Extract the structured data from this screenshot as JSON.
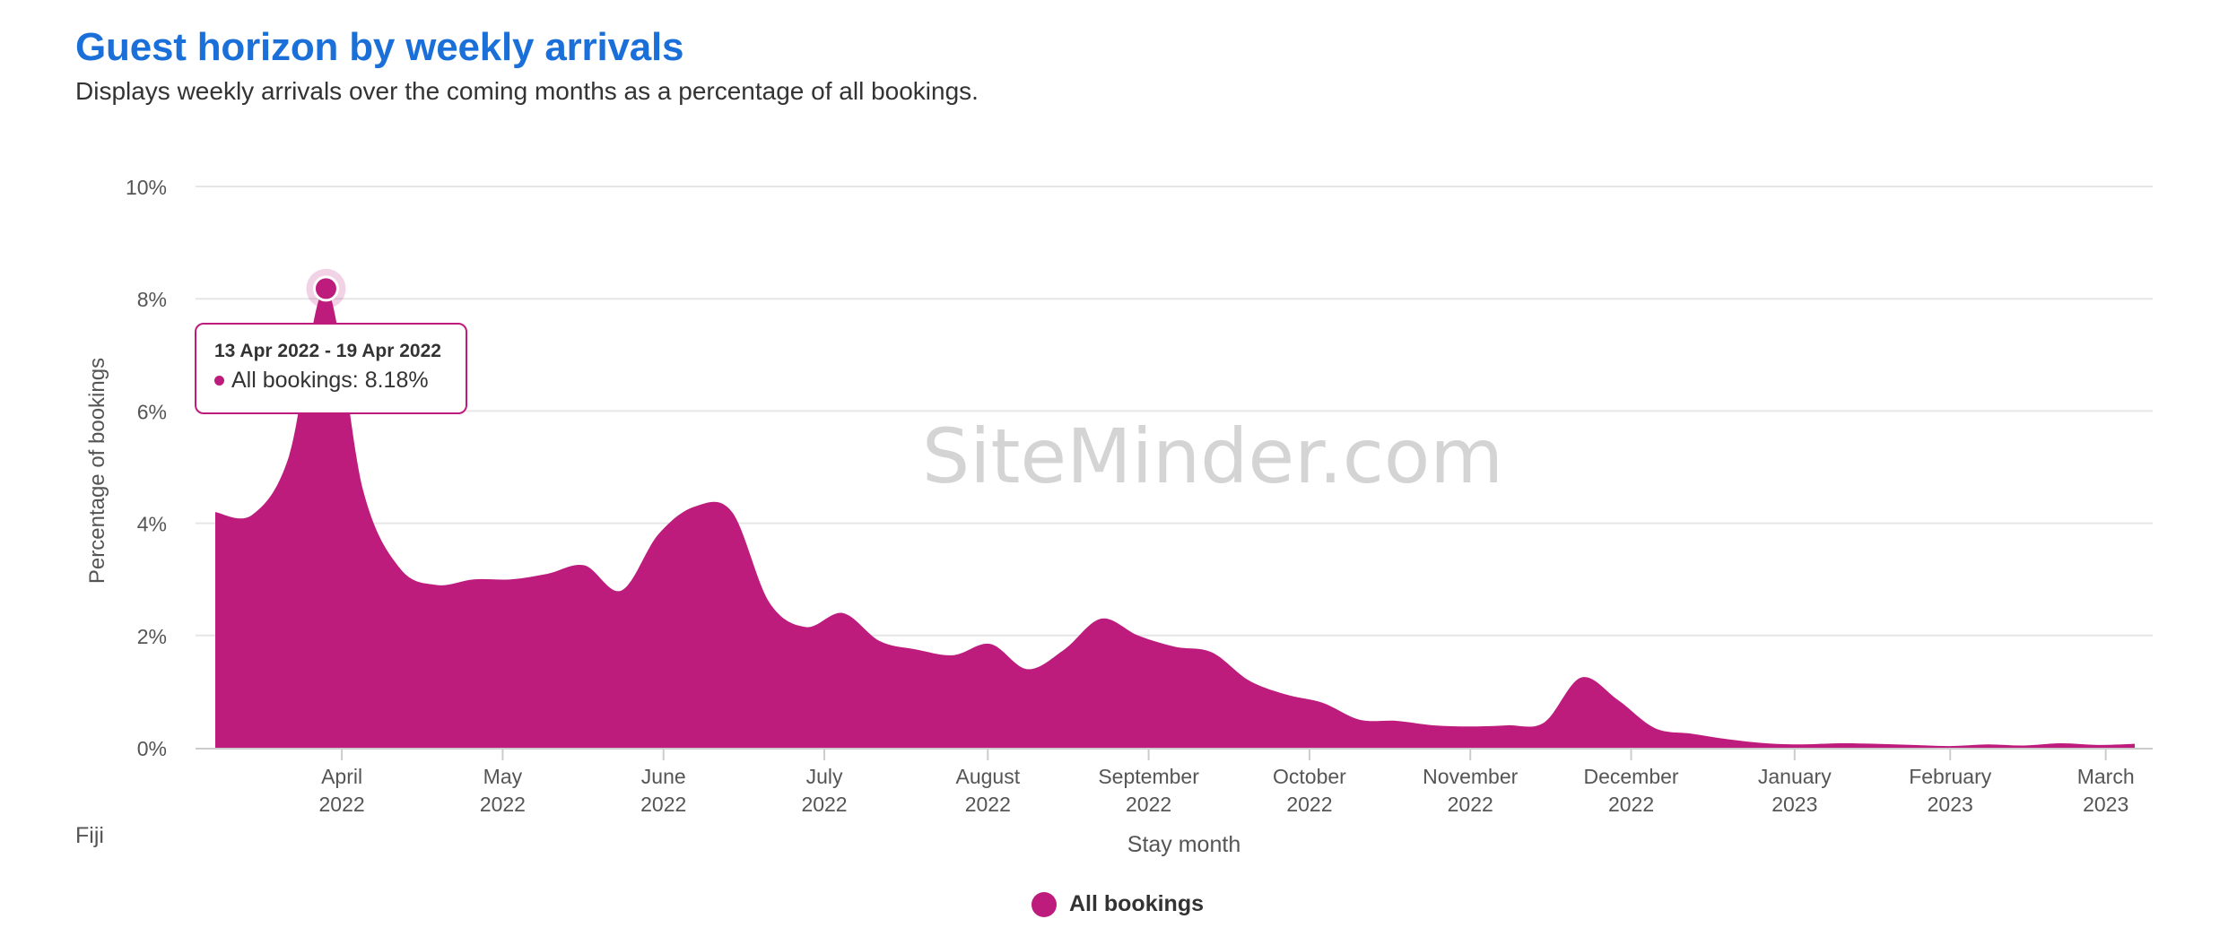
{
  "header": {
    "title": "Guest horizon by weekly arrivals",
    "subtitle": "Displays weekly arrivals over the coming months as a percentage of all bookings."
  },
  "region": "Fiji",
  "watermark": "SiteMinder.com",
  "colors": {
    "series": "#bd1c7d",
    "title": "#1a6fd9",
    "grid": "#e6e6e6",
    "watermark": "#d4d4d4"
  },
  "tooltip": {
    "date_range": "13 Apr 2022 - 19 Apr 2022",
    "text": "All bookings: 8.18%"
  },
  "legend": {
    "label": "All bookings",
    "position": "bottom-center"
  },
  "chart_data": {
    "type": "area",
    "title": "Guest horizon by weekly arrivals",
    "xlabel": "Stay month",
    "ylabel": "Percentage of bookings",
    "ylim": [
      0,
      10
    ],
    "grid": true,
    "yticks": [
      "0%",
      "2%",
      "4%",
      "6%",
      "8%",
      "10%"
    ],
    "xticks": [
      {
        "month": "April",
        "year": "2022"
      },
      {
        "month": "May",
        "year": "2022"
      },
      {
        "month": "June",
        "year": "2022"
      },
      {
        "month": "July",
        "year": "2022"
      },
      {
        "month": "August",
        "year": "2022"
      },
      {
        "month": "September",
        "year": "2022"
      },
      {
        "month": "October",
        "year": "2022"
      },
      {
        "month": "November",
        "year": "2022"
      },
      {
        "month": "December",
        "year": "2022"
      },
      {
        "month": "January",
        "year": "2023"
      },
      {
        "month": "February",
        "year": "2023"
      },
      {
        "month": "March",
        "year": "2023"
      }
    ],
    "series": [
      {
        "name": "All bookings",
        "x": [
          "2022-03-23",
          "2022-03-30",
          "2022-04-06",
          "2022-04-13",
          "2022-04-20",
          "2022-04-27",
          "2022-05-04",
          "2022-05-11",
          "2022-05-18",
          "2022-05-25",
          "2022-06-01",
          "2022-06-08",
          "2022-06-15",
          "2022-06-22",
          "2022-06-29",
          "2022-07-06",
          "2022-07-13",
          "2022-07-20",
          "2022-07-27",
          "2022-08-03",
          "2022-08-10",
          "2022-08-17",
          "2022-08-24",
          "2022-08-31",
          "2022-09-07",
          "2022-09-14",
          "2022-09-21",
          "2022-09-28",
          "2022-10-05",
          "2022-10-12",
          "2022-10-19",
          "2022-10-26",
          "2022-11-02",
          "2022-11-09",
          "2022-11-16",
          "2022-11-23",
          "2022-11-30",
          "2022-12-07",
          "2022-12-14",
          "2022-12-21",
          "2022-12-28",
          "2023-01-04",
          "2023-01-11",
          "2023-01-18",
          "2023-01-25",
          "2023-02-01",
          "2023-02-08",
          "2023-02-15",
          "2023-02-22",
          "2023-03-01",
          "2023-03-08",
          "2023-03-15",
          "2023-03-22"
        ],
        "values": [
          4.2,
          4.15,
          5.2,
          8.18,
          4.6,
          3.2,
          2.9,
          3.0,
          3.0,
          3.1,
          3.25,
          2.8,
          3.8,
          4.3,
          4.2,
          2.6,
          2.15,
          2.4,
          1.9,
          1.75,
          1.65,
          1.85,
          1.4,
          1.75,
          2.3,
          2.0,
          1.8,
          1.7,
          1.2,
          0.95,
          0.8,
          0.5,
          0.48,
          0.4,
          0.38,
          0.4,
          0.45,
          1.25,
          0.85,
          0.35,
          0.25,
          0.15,
          0.08,
          0.06,
          0.08,
          0.07,
          0.05,
          0.03,
          0.06,
          0.04,
          0.08,
          0.05,
          0.07
        ]
      }
    ]
  }
}
